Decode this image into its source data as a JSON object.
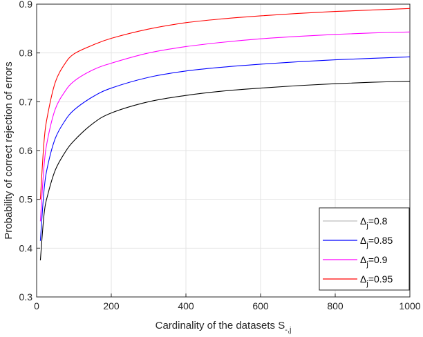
{
  "chart_data": {
    "type": "line",
    "xlabel": "Cardinality of the datasets S",
    "xlabel_subscript": "-,j",
    "ylabel": "Probability of correct rejection of errors",
    "xlim": [
      0,
      1000
    ],
    "ylim": [
      0.3,
      0.9
    ],
    "xticks": [
      "0",
      "200",
      "400",
      "600",
      "800",
      "1000"
    ],
    "yticks": [
      "0.3",
      "0.4",
      "0.5",
      "0.6",
      "0.7",
      "0.8",
      "0.9"
    ],
    "grid": true,
    "legend_position": "bottom-right",
    "x": [
      10,
      20,
      30,
      50,
      75,
      100,
      150,
      200,
      300,
      400,
      500,
      600,
      700,
      800,
      900,
      1000
    ],
    "series": [
      {
        "name": "Δ",
        "subscript": "j",
        "eq": "=0.8",
        "legend_color": "#bdbdbd",
        "line_color": "#000000",
        "values": [
          0.375,
          0.47,
          0.51,
          0.56,
          0.595,
          0.62,
          0.655,
          0.677,
          0.7,
          0.713,
          0.722,
          0.728,
          0.733,
          0.737,
          0.74,
          0.742
        ]
      },
      {
        "name": "Δ",
        "subscript": "j",
        "eq": "=0.85",
        "legend_color": "#0000ff",
        "line_color": "#0000ff",
        "values": [
          0.415,
          0.52,
          0.57,
          0.625,
          0.66,
          0.683,
          0.71,
          0.728,
          0.75,
          0.763,
          0.771,
          0.777,
          0.782,
          0.786,
          0.789,
          0.792
        ]
      },
      {
        "name": "Δ",
        "subscript": "j",
        "eq": "=0.9",
        "legend_color": "#ff00ff",
        "line_color": "#ff00ff",
        "values": [
          0.455,
          0.57,
          0.625,
          0.685,
          0.72,
          0.742,
          0.765,
          0.779,
          0.8,
          0.813,
          0.822,
          0.829,
          0.834,
          0.838,
          0.841,
          0.843
        ]
      },
      {
        "name": "Δ",
        "subscript": "j",
        "eq": "=0.95",
        "legend_color": "#ff0000",
        "line_color": "#ff0000",
        "values": [
          0.5,
          0.62,
          0.675,
          0.74,
          0.777,
          0.798,
          0.816,
          0.83,
          0.849,
          0.862,
          0.87,
          0.876,
          0.881,
          0.885,
          0.888,
          0.891
        ]
      }
    ]
  }
}
